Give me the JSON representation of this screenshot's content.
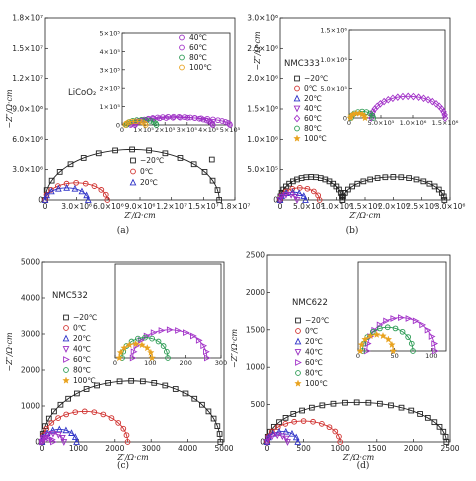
{
  "colors": {
    "-20": "#222222",
    "0": "#d0302e",
    "20": "#3034c8",
    "40": "#9a2ec2",
    "60": "#a232c8",
    "80": "#2a9a52",
    "100": "#e8a21e",
    "fit": "#333333"
  },
  "chart_data": [
    {
      "type": "scatter",
      "panel_label": "(a)",
      "material": "LiCoO₂",
      "xlabel": "Z′/Ω·cm",
      "ylabel": "−Z″/Ω·cm",
      "xlim": [
        0,
        18000000
      ],
      "ylim": [
        0,
        18000000
      ],
      "xticks": [
        0,
        3000000,
        6000000,
        9000000,
        12000000,
        15000000,
        18000000
      ],
      "xtick_labels": [
        "0",
        "3.0×10⁶",
        "6.0×10⁶",
        "9.0×10⁶",
        "1.2×10⁷",
        "1.5×10⁷",
        "1.8×10⁷"
      ],
      "yticks": [
        0,
        3000000,
        6000000,
        9000000,
        12000000,
        15000000,
        18000000
      ],
      "ytick_labels": [
        "0",
        "3.0×10⁶",
        "6.0×10⁶",
        "9.0×10⁶",
        "1.2×10⁷",
        "1.5×10⁷",
        "1.8×10⁷"
      ],
      "legend": [
        {
          "label": "−20℃",
          "temp": "-20",
          "marker": "square"
        },
        {
          "label": "0℃",
          "temp": "0",
          "marker": "circle"
        },
        {
          "label": "20℃",
          "temp": "20",
          "marker": "triangle"
        }
      ],
      "series": [
        {
          "label": "−20℃",
          "temp": "-20",
          "marker": "square",
          "arcs": [
            [
              0,
              16500000,
              5000000
            ]
          ],
          "tail": [
            15800000,
            4000000
          ],
          "points": 16
        },
        {
          "label": "0℃",
          "temp": "0",
          "marker": "circle",
          "arcs": [
            [
              0,
              5900000,
              1700000
            ]
          ],
          "points": 10
        },
        {
          "label": "20℃",
          "temp": "20",
          "marker": "triangle",
          "arcs": [
            [
              0,
              4100000,
              1200000
            ]
          ],
          "points": 8
        }
      ],
      "inset": {
        "xlim": [
          0,
          500000
        ],
        "ylim": [
          0,
          500000
        ],
        "xticks": [
          0,
          100000,
          200000,
          300000,
          400000,
          500000
        ],
        "xtick_labels": [
          "0",
          "1×10⁵",
          "2×10⁵",
          "3×10⁵",
          "4×10⁵",
          "5×10⁵"
        ],
        "yticks": [
          0,
          100000,
          200000,
          300000,
          400000,
          500000
        ],
        "ytick_labels": [
          "0",
          "1×10⁵",
          "2×10⁵",
          "3×10⁵",
          "4×10⁵",
          "5×10⁵"
        ],
        "legend": [
          {
            "label": "40℃",
            "temp": "40",
            "marker": "circle"
          },
          {
            "label": "60℃",
            "temp": "60",
            "marker": "circle"
          },
          {
            "label": "80℃",
            "temp": "80",
            "marker": "circle"
          },
          {
            "label": "100℃",
            "temp": "100",
            "marker": "circle"
          }
        ],
        "series": [
          {
            "label": "40℃",
            "temp": "40",
            "marker": "circle",
            "arcs": [
              [
                60000,
                420000,
                45000
              ]
            ],
            "points": 22
          },
          {
            "label": "60℃",
            "temp": "60",
            "marker": "circle",
            "arcs": [
              [
                40000,
                500000,
                40000
              ]
            ],
            "points": 22
          },
          {
            "label": "80℃",
            "temp": "80",
            "marker": "circle",
            "arcs": [
              [
                20000,
                160000,
                28000
              ]
            ],
            "points": 10
          },
          {
            "label": "100℃",
            "temp": "100",
            "marker": "circle",
            "arcs": [
              [
                15000,
                110000,
                20000
              ]
            ],
            "points": 8
          }
        ]
      }
    },
    {
      "type": "scatter",
      "panel_label": "(b)",
      "material": "NMC333",
      "xlabel": "Z′/Ω·cm",
      "ylabel": "−Z″/Ω·cm",
      "xlim": [
        0,
        3000000
      ],
      "ylim": [
        0,
        3000000
      ],
      "xticks": [
        0,
        500000,
        1000000,
        1500000,
        2000000,
        2500000,
        3000000
      ],
      "xtick_labels": [
        "0",
        "5.0×10⁵",
        "1.0×10⁶",
        "1.5×10⁶",
        "2.0×10⁶",
        "2.5×10⁶",
        "3.0×10⁶"
      ],
      "yticks": [
        0,
        500000,
        1000000,
        1500000,
        2000000,
        2500000,
        3000000
      ],
      "ytick_labels": [
        "0",
        "5.0×10⁵",
        "1.0×10⁶",
        "1.5×10⁶",
        "2.0×10⁶",
        "2.5×10⁶",
        "3.0×10⁶"
      ],
      "legend": [
        {
          "label": "−20℃",
          "temp": "-20",
          "marker": "square"
        },
        {
          "label": "0℃",
          "temp": "0",
          "marker": "circle"
        },
        {
          "label": "20℃",
          "temp": "20",
          "marker": "triangle"
        },
        {
          "label": "40℃",
          "temp": "40",
          "marker": "triangle-down"
        },
        {
          "label": "60℃",
          "temp": "60",
          "marker": "diamond"
        },
        {
          "label": "80℃",
          "temp": "80",
          "marker": "circle"
        },
        {
          "label": "100℃",
          "temp": "100",
          "marker": "star"
        }
      ],
      "series": [
        {
          "label": "−20℃",
          "temp": "-20",
          "marker": "square",
          "arcs": [
            [
              0,
              1100000,
              380000
            ],
            [
              1100000,
              2900000,
              380000
            ]
          ],
          "points": 20
        },
        {
          "label": "0℃",
          "temp": "0",
          "marker": "circle",
          "arcs": [
            [
              0,
              700000,
              200000
            ]
          ],
          "points": 8
        },
        {
          "label": "20℃",
          "temp": "20",
          "marker": "triangle",
          "arcs": [
            [
              0,
              450000,
              130000
            ]
          ],
          "points": 6
        },
        {
          "label": "40℃",
          "temp": "40",
          "marker": "triangle-down",
          "arcs": [
            [
              0,
              300000,
              90000
            ]
          ],
          "points": 5
        }
      ],
      "inset": {
        "xlim": [
          0,
          1500000
        ],
        "ylim": [
          0,
          1500000
        ],
        "xticks": [
          0,
          500000,
          1000000,
          1500000
        ],
        "xtick_labels": [
          "0",
          "5.0×10⁵",
          "1.0×10⁶",
          "1.5×10⁶"
        ],
        "yticks": [
          0,
          500000,
          1000000,
          1500000
        ],
        "ytick_labels": [
          "0",
          "5.0×10⁵",
          "1.0×10⁶",
          "1.5×10⁶"
        ],
        "series": [
          {
            "label": "60℃",
            "temp": "60",
            "marker": "diamond",
            "arcs": [
              [
                350000,
                1500000,
                370000
              ]
            ],
            "points": 22
          },
          {
            "label": "80℃",
            "temp": "80",
            "marker": "circle",
            "arcs": [
              [
                30000,
                380000,
                110000
              ]
            ],
            "points": 8
          },
          {
            "label": "100℃",
            "temp": "100",
            "marker": "star",
            "arcs": [
              [
                20000,
                250000,
                80000
              ]
            ],
            "points": 7
          }
        ]
      }
    },
    {
      "type": "scatter",
      "panel_label": "(c)",
      "material": "NMC532",
      "xlabel": "Z′/Ω·cm",
      "ylabel": "−Z″/Ω·cm",
      "xlim": [
        0,
        5000
      ],
      "ylim": [
        0,
        5000
      ],
      "xticks": [
        0,
        1000,
        2000,
        3000,
        4000,
        5000
      ],
      "xtick_labels": [
        "0",
        "1000",
        "2000",
        "3000",
        "4000",
        "5000"
      ],
      "yticks": [
        0,
        1000,
        2000,
        3000,
        4000,
        5000
      ],
      "ytick_labels": [
        "0",
        "1000",
        "2000",
        "3000",
        "4000",
        "5000"
      ],
      "legend": [
        {
          "label": "−20℃",
          "temp": "-20",
          "marker": "square"
        },
        {
          "label": "0℃",
          "temp": "0",
          "marker": "circle"
        },
        {
          "label": "20℃",
          "temp": "20",
          "marker": "triangle"
        },
        {
          "label": "40℃",
          "temp": "40",
          "marker": "triangle-down"
        },
        {
          "label": "60℃",
          "temp": "60",
          "marker": "triangle-right"
        },
        {
          "label": "80℃",
          "temp": "80",
          "marker": "circle"
        },
        {
          "label": "100℃",
          "temp": "100",
          "marker": "star"
        }
      ],
      "series": [
        {
          "label": "−20℃",
          "temp": "-20",
          "marker": "square",
          "arcs": [
            [
              0,
              4900,
              1700
            ]
          ],
          "points": 24
        },
        {
          "label": "0℃",
          "temp": "0",
          "marker": "circle",
          "arcs": [
            [
              0,
              2350,
              850
            ]
          ],
          "points": 14
        },
        {
          "label": "20℃",
          "temp": "20",
          "marker": "triangle",
          "arcs": [
            [
              0,
              950,
              350
            ]
          ],
          "points": 8
        },
        {
          "label": "40℃",
          "temp": "40",
          "marker": "triangle-down",
          "arcs": [
            [
              0,
              600,
              230
            ]
          ],
          "points": 6
        },
        {
          "label": "60℃",
          "temp": "60",
          "marker": "triangle-right",
          "arcs": [
            [
              0,
              300,
              110
            ]
          ],
          "points": 5
        }
      ],
      "inset": {
        "xlim": [
          0,
          300
        ],
        "ylim": [
          0,
          300
        ],
        "xticks": [
          0,
          100,
          200,
          300
        ],
        "xtick_labels": [
          "0",
          "100",
          "200",
          "300"
        ],
        "series": [
          {
            "label": "60℃",
            "temp": "60",
            "marker": "triangle-right",
            "arcs": [
              [
                50,
                260,
                90
              ]
            ],
            "points": 14
          },
          {
            "label": "80℃",
            "temp": "80",
            "marker": "circle",
            "arcs": [
              [
                20,
                150,
                65
              ]
            ],
            "points": 10
          },
          {
            "label": "100℃",
            "temp": "100",
            "marker": "star",
            "arcs": [
              [
                12,
                105,
                45
              ]
            ],
            "points": 8
          }
        ]
      }
    },
    {
      "type": "scatter",
      "panel_label": "(d)",
      "material": "NMC622",
      "xlabel": "Z′/Ω·cm",
      "ylabel": "−Z″/Ω·cm",
      "xlim": [
        0,
        2500
      ],
      "ylim": [
        0,
        2500
      ],
      "xticks": [
        0,
        500,
        1000,
        1500,
        2000,
        2500
      ],
      "xtick_labels": [
        "0",
        "500",
        "1000",
        "1500",
        "2000",
        "2500"
      ],
      "yticks": [
        0,
        500,
        1000,
        1500,
        2000,
        2500
      ],
      "ytick_labels": [
        "0",
        "500",
        "1000",
        "1500",
        "2000",
        "2500"
      ],
      "legend": [
        {
          "label": "−20℃",
          "temp": "-20",
          "marker": "square"
        },
        {
          "label": "0℃",
          "temp": "0",
          "marker": "circle"
        },
        {
          "label": "20℃",
          "temp": "20",
          "marker": "triangle"
        },
        {
          "label": "40℃",
          "temp": "40",
          "marker": "triangle-down"
        },
        {
          "label": "60℃",
          "temp": "60",
          "marker": "triangle-right"
        },
        {
          "label": "80℃",
          "temp": "80",
          "marker": "circle"
        },
        {
          "label": "100℃",
          "temp": "100",
          "marker": "star"
        }
      ],
      "series": [
        {
          "label": "−20℃",
          "temp": "-20",
          "marker": "square",
          "arcs": [
            [
              0,
              2450,
              530
            ]
          ],
          "points": 24
        },
        {
          "label": "0℃",
          "temp": "0",
          "marker": "circle",
          "arcs": [
            [
              0,
              1000,
              280
            ]
          ],
          "points": 12
        },
        {
          "label": "20℃",
          "temp": "20",
          "marker": "triangle",
          "arcs": [
            [
              0,
              420,
              140
            ]
          ],
          "points": 7
        },
        {
          "label": "40℃",
          "temp": "40",
          "marker": "triangle-down",
          "arcs": [
            [
              0,
              280,
              90
            ]
          ],
          "points": 6
        }
      ],
      "inset": {
        "xlim": [
          0,
          120
        ],
        "ylim": [
          0,
          120
        ],
        "xticks": [
          0,
          50,
          100
        ],
        "xtick_labels": [
          "0",
          "50",
          "100"
        ],
        "series": [
          {
            "label": "60℃",
            "temp": "60",
            "marker": "triangle-right",
            "arcs": [
              [
                12,
                105,
                45
              ]
            ],
            "points": 14
          },
          {
            "label": "80℃",
            "temp": "80",
            "marker": "circle",
            "arcs": [
              [
                6,
                75,
                32
              ]
            ],
            "points": 10
          },
          {
            "label": "100℃",
            "temp": "100",
            "marker": "star",
            "arcs": [
              [
                3,
                48,
                22
              ]
            ],
            "points": 8
          }
        ]
      }
    }
  ]
}
